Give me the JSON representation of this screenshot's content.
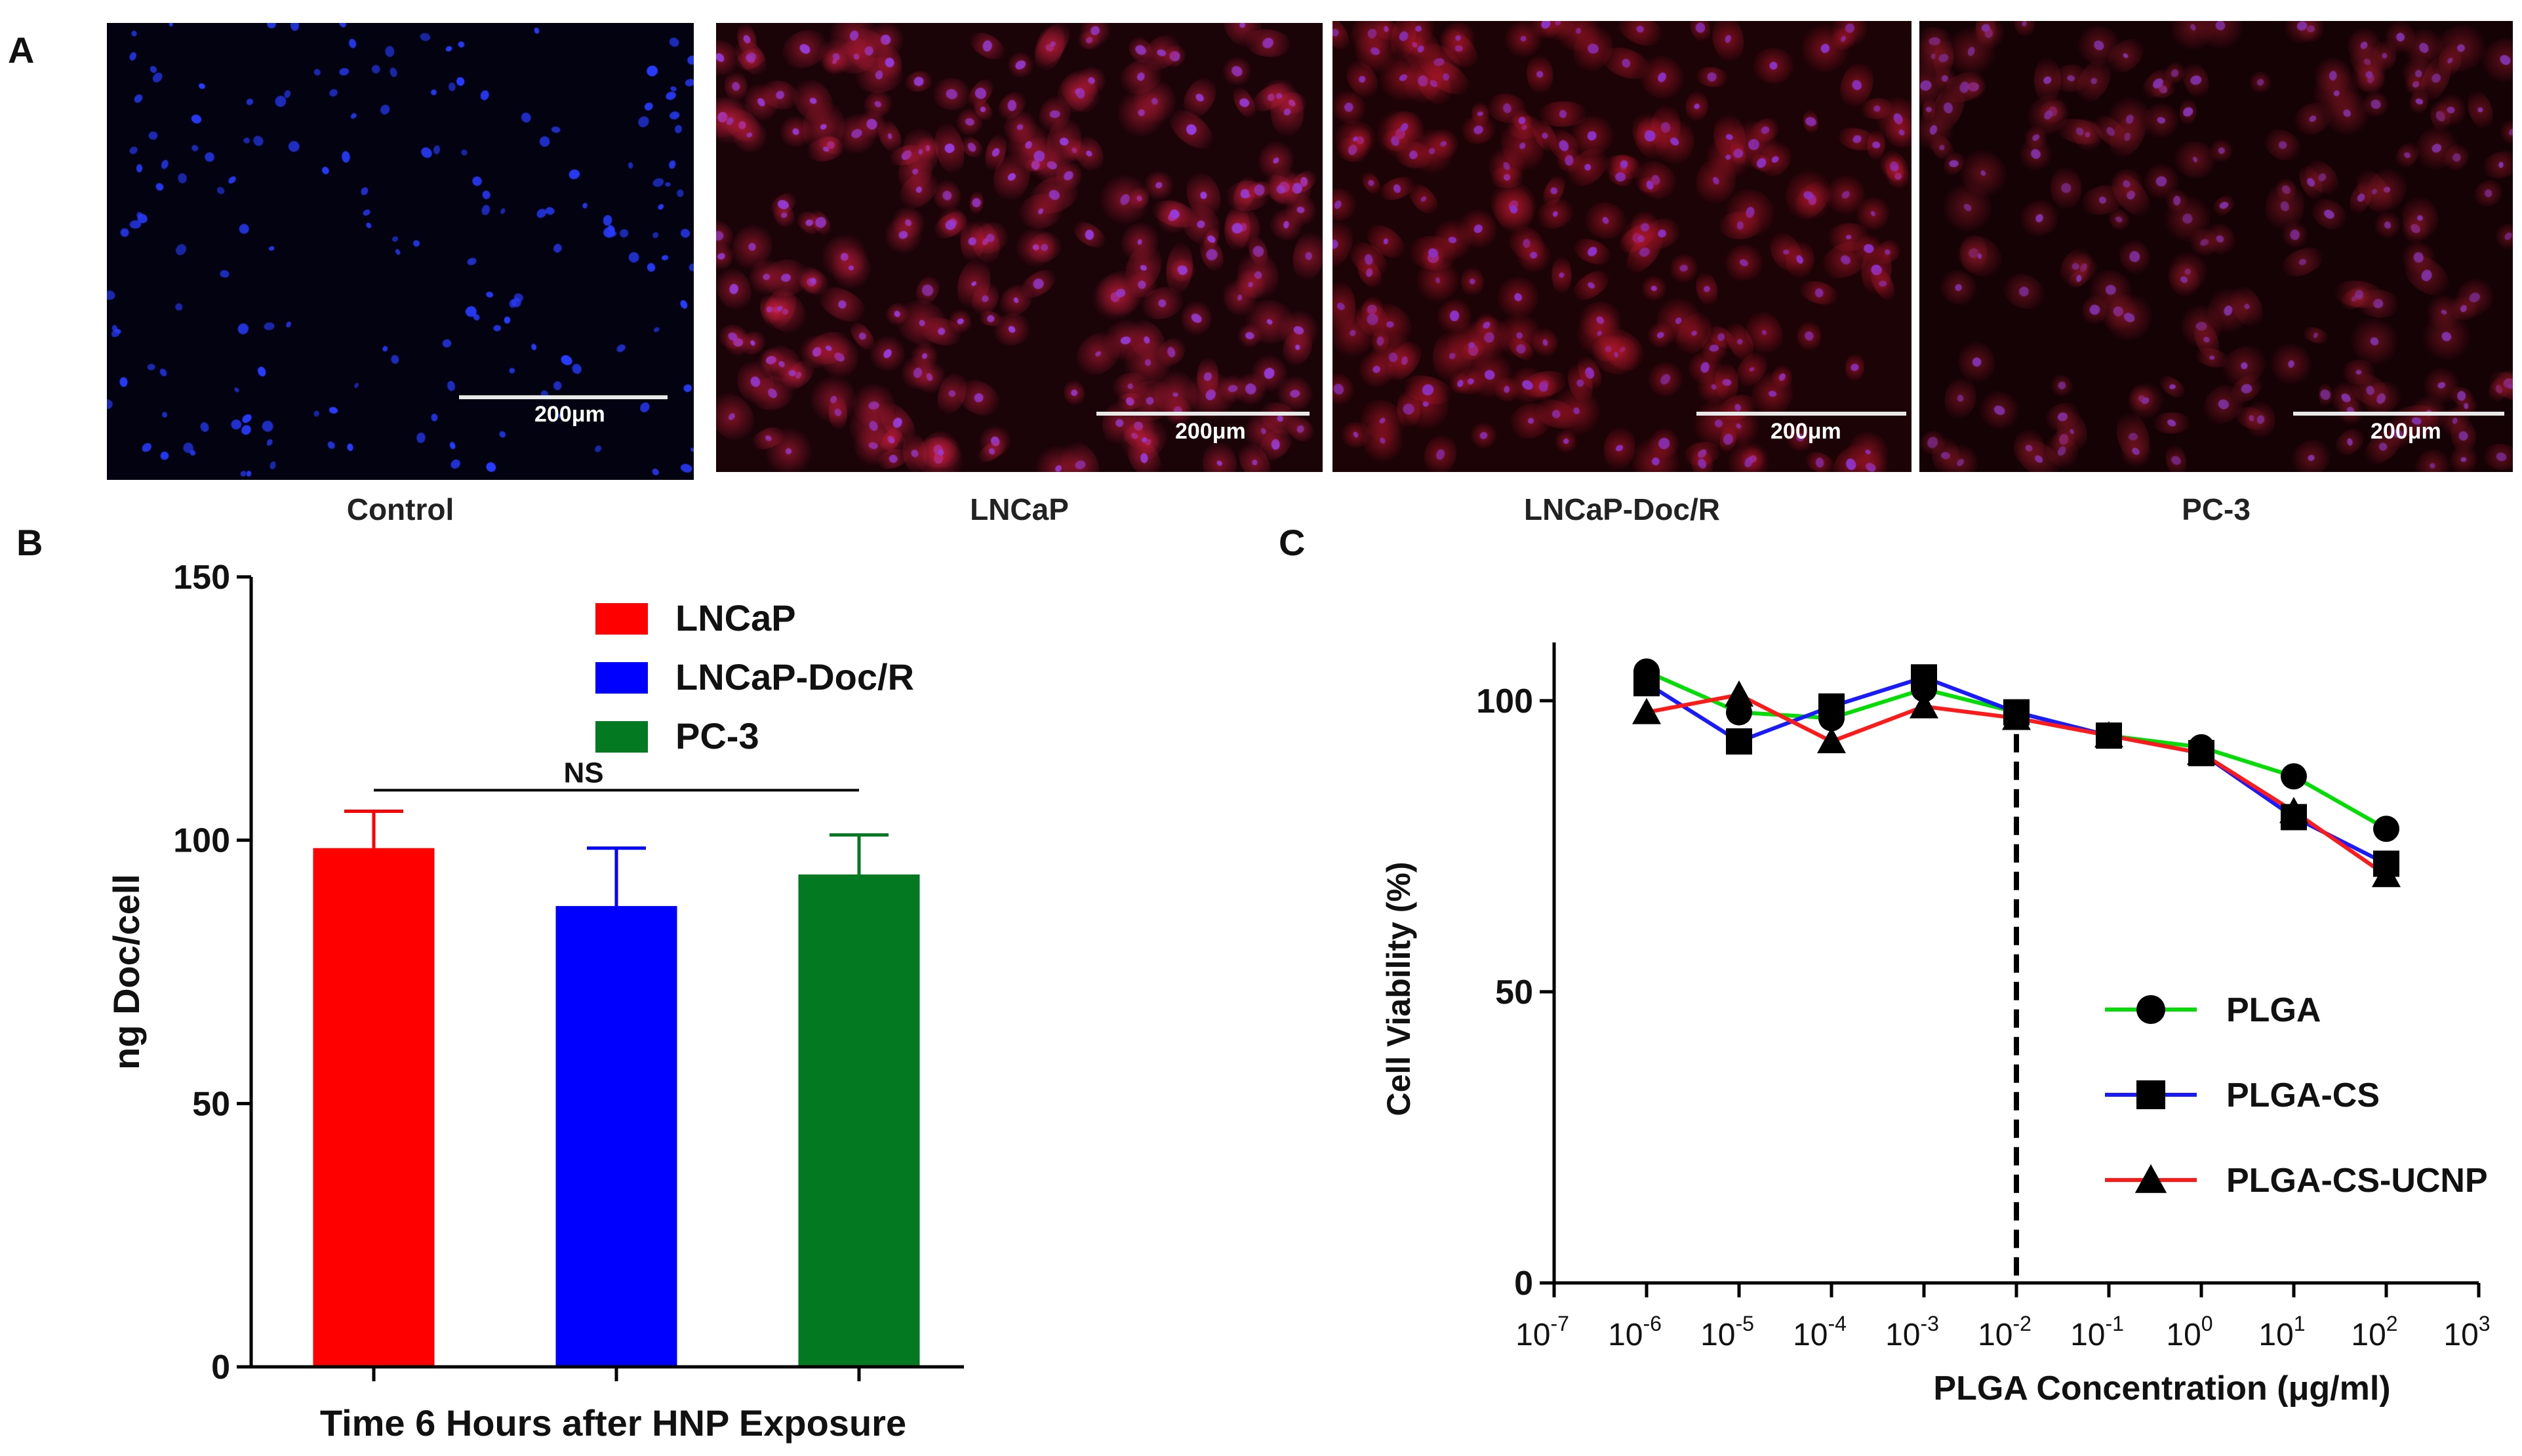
{
  "panels": {
    "a": {
      "letter": "A",
      "images": [
        {
          "caption": "Control",
          "scale_label": "200μm",
          "tint": "blue",
          "background": "#020210"
        },
        {
          "caption": "LNCaP",
          "scale_label": "200μm",
          "tint": "red-purple",
          "background": "#1a0408"
        },
        {
          "caption": "LNCaP-Doc/R",
          "scale_label": "200μm",
          "tint": "red",
          "background": "#1c0306"
        },
        {
          "caption": "PC-3",
          "scale_label": "200μm",
          "tint": "dim-red",
          "background": "#140205"
        }
      ]
    },
    "b": {
      "letter": "B"
    },
    "c": {
      "letter": "C"
    }
  },
  "chart_data": [
    {
      "type": "bar",
      "ylabel": "ng Doc/cell",
      "xlabel": "Time 6 Hours after HNP Exposure",
      "ylim": [
        0,
        150
      ],
      "yticks": [
        "0",
        "50",
        "100",
        "150"
      ],
      "categories": [
        "LNCaP",
        "LNCaP-Doc/R",
        "PC-3"
      ],
      "values": [
        98.5,
        87.5,
        93.5
      ],
      "errors": [
        7,
        11,
        7.5
      ],
      "colors": [
        "#ff0000",
        "#0000ff",
        "#037a22"
      ],
      "legend": {
        "placement": "top-center",
        "entries": [
          "LNCaP",
          "LNCaP-Doc/R",
          "PC-3"
        ]
      },
      "annotation": {
        "text": "NS",
        "y": 109.5
      }
    },
    {
      "type": "line",
      "ylabel": "Cell Viability (%)",
      "xlabel": "PLGA Concentration (μg/ml)",
      "x_scale": "log",
      "ylim": [
        0,
        110
      ],
      "xlim": [
        1e-07,
        1000
      ],
      "yticks": [
        "0",
        "50",
        "100"
      ],
      "xticks": [
        {
          "base": "10",
          "exp": "-7"
        },
        {
          "base": "10",
          "exp": "-6"
        },
        {
          "base": "10",
          "exp": "-5"
        },
        {
          "base": "10",
          "exp": "-4"
        },
        {
          "base": "10",
          "exp": "-3"
        },
        {
          "base": "10",
          "exp": "-2"
        },
        {
          "base": "10",
          "exp": "-1"
        },
        {
          "base": "10",
          "exp": "0"
        },
        {
          "base": "10",
          "exp": "1"
        },
        {
          "base": "10",
          "exp": "2"
        },
        {
          "base": "10",
          "exp": "3"
        }
      ],
      "x": [
        1e-06,
        1e-05,
        0.0001,
        0.001,
        0.01,
        0.1,
        1,
        10,
        100
      ],
      "series": [
        {
          "name": "PLGA",
          "color": "#00dd00",
          "marker": "circle",
          "values": [
            105,
            98,
            97,
            102,
            98,
            94,
            92,
            87,
            78
          ]
        },
        {
          "name": "PLGA-CS",
          "color": "#1a1aff",
          "marker": "square",
          "values": [
            103,
            93,
            99,
            104,
            98,
            94,
            91,
            80,
            72
          ]
        },
        {
          "name": "PLGA-CS-UCNP",
          "color": "#ff1a1a",
          "marker": "triangle",
          "values": [
            98,
            101,
            93,
            99,
            97,
            94,
            91,
            81,
            70
          ]
        }
      ],
      "reference_line": {
        "x": 0.01,
        "style": "dashed"
      },
      "legend": {
        "placement": "bottom-right",
        "entries": [
          "PLGA",
          "PLGA-CS",
          "PLGA-CS-UCNP"
        ]
      }
    }
  ]
}
